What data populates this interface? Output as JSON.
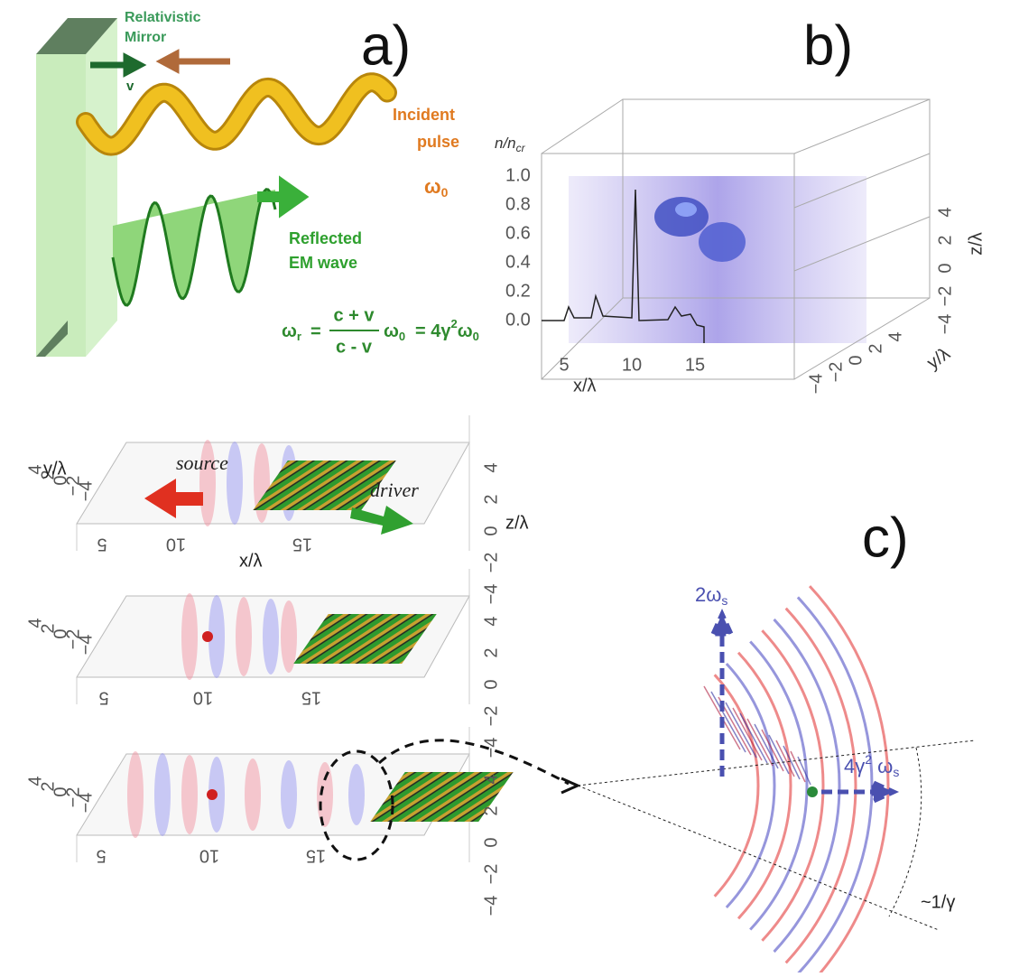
{
  "panel_a": {
    "label": "a)",
    "mirror": [
      "Relativistic",
      "Mirror"
    ],
    "velocity": "v",
    "incident": [
      "Incident",
      "pulse"
    ],
    "incident_freq": {
      "symbol": "ω",
      "sub": "0"
    },
    "reflected": [
      "Reflected",
      "EM wave"
    ],
    "formula": {
      "lhs": "ω",
      "lhs_sub": "r",
      "eq1": "=",
      "numerator": "c + v",
      "denominator": "c - v",
      "mid": "ω",
      "mid_sub": "0",
      "eq2": "= 4γ",
      "eq2_sup": "2",
      "rhs": "ω",
      "rhs_sub": "0"
    }
  },
  "panel_b": {
    "label": "b)",
    "density_axis": {
      "label": "n/n",
      "label_sub": "cr",
      "ticks": [
        "0.0",
        "0.2",
        "0.4",
        "0.6",
        "0.8",
        "1.0"
      ]
    },
    "x_axis": {
      "label": "x/λ",
      "ticks": [
        "5",
        "10",
        "15"
      ]
    },
    "z_axis": {
      "label": "z/λ",
      "ticks": [
        "4",
        "2",
        "0",
        "−2",
        "−4"
      ]
    },
    "y_axis": {
      "label": "y/λ",
      "ticks": [
        "−4",
        "−2",
        "0",
        "2",
        "4"
      ]
    }
  },
  "panel_c": {
    "label": "c)",
    "source": "source",
    "driver": "driver",
    "slices": [
      {
        "y_label": "y/λ",
        "x_label": "x/λ",
        "z_label": "z/λ",
        "y_ticks": [
          "4",
          "2",
          "0",
          "−2",
          "−4"
        ],
        "x_ticks": [
          "5",
          "10",
          "15"
        ],
        "z_ticks": [
          "4",
          "2",
          "0",
          "−2",
          "−4"
        ]
      },
      {
        "y_ticks": [
          "4",
          "2",
          "0",
          "−2",
          "−4"
        ],
        "x_ticks": [
          "5",
          "10",
          "15"
        ],
        "z_ticks": [
          "4",
          "2",
          "0",
          "−2",
          "−4"
        ]
      },
      {
        "y_ticks": [
          "4",
          "2",
          "0",
          "−2",
          "−4"
        ],
        "x_ticks": [
          "5",
          "10",
          "15"
        ],
        "z_ticks": [
          "4",
          "2",
          "0",
          "−2",
          "−4"
        ]
      }
    ],
    "harmonic": {
      "symbol": "2ω",
      "sub": "s"
    },
    "forward": {
      "symbol": "4γ",
      "sup": "2",
      "rest": " ω",
      "sub": "s"
    },
    "angle": "~1/γ"
  }
}
